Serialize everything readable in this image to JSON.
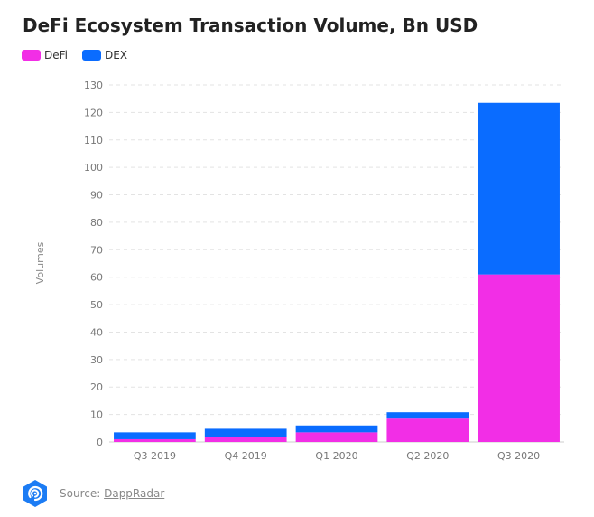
{
  "chart_data": {
    "type": "bar",
    "stacked": true,
    "title": "DeFi Ecosystem Transaction Volume, Bn USD",
    "ylabel": "Volumes",
    "xlabel": "",
    "ylim": [
      0,
      130
    ],
    "yticks": [
      0,
      10,
      20,
      30,
      40,
      50,
      60,
      70,
      80,
      90,
      100,
      110,
      120,
      130
    ],
    "grid": true,
    "legend_position": "top-left",
    "categories": [
      "Q3 2019",
      "Q4 2019",
      "Q1 2020",
      "Q2 2020",
      "Q3 2020"
    ],
    "series": [
      {
        "name": "DeFi",
        "color": "#F22EE6",
        "values": [
          1,
          1.8,
          3.5,
          8.5,
          61
        ]
      },
      {
        "name": "DEX",
        "color": "#0A6CFF",
        "values": [
          2.5,
          3,
          2.5,
          2.3,
          62.5
        ]
      }
    ]
  },
  "source": {
    "label": "Source:",
    "link_text": "DappRadar",
    "logo_icon": "dappradar-logo-icon"
  }
}
